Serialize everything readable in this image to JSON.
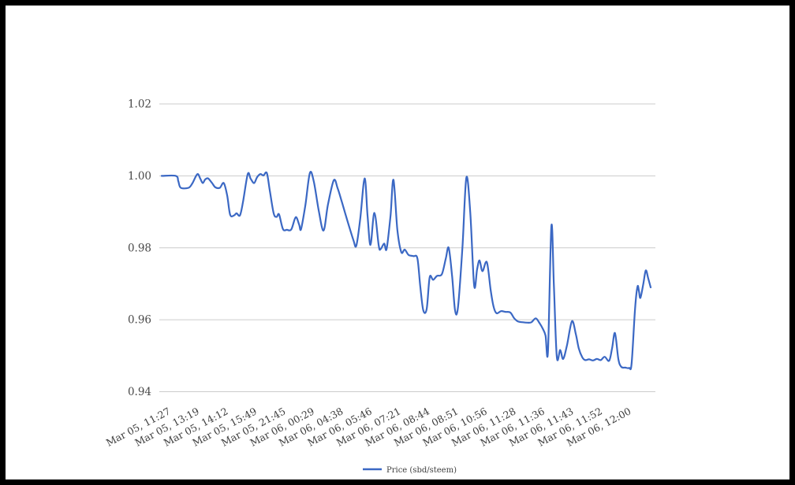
{
  "page": {
    "background_color": "#ffffff",
    "frame_color": "#000000"
  },
  "chart_data": {
    "type": "line",
    "title": "",
    "xlabel": "",
    "ylabel": "",
    "grid": "horizontal-only",
    "grid_color": "#cccccc",
    "ylim": [
      0.94,
      1.02
    ],
    "y_ticks": [
      "1.02",
      "1.00",
      "0.98",
      "0.96",
      "0.94"
    ],
    "y_tick_values": [
      1.02,
      1.0,
      0.98,
      0.96,
      0.94
    ],
    "x_tick_labels": [
      "Mar 05, 11:27",
      "Mar 05, 13:19",
      "Mar 05, 14:12",
      "Mar 05, 15:49",
      "Mar 05, 21:45",
      "Mar 06, 00:29",
      "Mar 06, 04:38",
      "Mar 06, 05:46",
      "Mar 06, 07:21",
      "Mar 06, 08:44",
      "Mar 06, 08:51",
      "Mar 06, 10:56",
      "Mar 06, 11:28",
      "Mar 06, 11:36",
      "Mar 06, 11:43",
      "Mar 06, 11:52",
      "Mar 06, 12:00"
    ],
    "legend": {
      "position": "bottom-center",
      "label": "Price (sbd/steem)"
    },
    "series": [
      {
        "name": "Price (sbd/steem)",
        "color": "#3b68c4",
        "points": [
          [
            0.0,
            1.0
          ],
          [
            0.029,
            1.0
          ],
          [
            0.034,
            0.9985
          ],
          [
            0.039,
            0.9967
          ],
          [
            0.055,
            0.9967
          ],
          [
            0.063,
            0.998
          ],
          [
            0.073,
            1.0005
          ],
          [
            0.079,
            0.9992
          ],
          [
            0.084,
            0.998
          ],
          [
            0.089,
            0.999
          ],
          [
            0.095,
            0.9993
          ],
          [
            0.103,
            0.998
          ],
          [
            0.11,
            0.9968
          ],
          [
            0.119,
            0.9967
          ],
          [
            0.127,
            0.998
          ],
          [
            0.134,
            0.9945
          ],
          [
            0.14,
            0.9892
          ],
          [
            0.148,
            0.989
          ],
          [
            0.153,
            0.9896
          ],
          [
            0.16,
            0.989
          ],
          [
            0.166,
            0.9925
          ],
          [
            0.176,
            1.0005
          ],
          [
            0.182,
            0.9992
          ],
          [
            0.189,
            0.998
          ],
          [
            0.195,
            0.9996
          ],
          [
            0.202,
            1.0005
          ],
          [
            0.208,
            1.0001
          ],
          [
            0.215,
            1.0008
          ],
          [
            0.221,
            0.996
          ],
          [
            0.229,
            0.9896
          ],
          [
            0.235,
            0.9886
          ],
          [
            0.24,
            0.9893
          ],
          [
            0.248,
            0.9852
          ],
          [
            0.256,
            0.985
          ],
          [
            0.265,
            0.9851
          ],
          [
            0.274,
            0.9885
          ],
          [
            0.281,
            0.9865
          ],
          [
            0.285,
            0.9852
          ],
          [
            0.294,
            0.992
          ],
          [
            0.303,
            1.0008
          ],
          [
            0.311,
            0.9985
          ],
          [
            0.321,
            0.9905
          ],
          [
            0.331,
            0.9848
          ],
          [
            0.34,
            0.992
          ],
          [
            0.352,
            0.9988
          ],
          [
            0.36,
            0.9965
          ],
          [
            0.369,
            0.9925
          ],
          [
            0.381,
            0.987
          ],
          [
            0.392,
            0.9822
          ],
          [
            0.398,
            0.9806
          ],
          [
            0.406,
            0.988
          ],
          [
            0.415,
            0.9993
          ],
          [
            0.421,
            0.989
          ],
          [
            0.427,
            0.9808
          ],
          [
            0.435,
            0.9897
          ],
          [
            0.444,
            0.9805
          ],
          [
            0.448,
            0.9797
          ],
          [
            0.455,
            0.9812
          ],
          [
            0.46,
            0.9797
          ],
          [
            0.468,
            0.989
          ],
          [
            0.474,
            0.9989
          ],
          [
            0.482,
            0.985
          ],
          [
            0.49,
            0.9788
          ],
          [
            0.497,
            0.9795
          ],
          [
            0.505,
            0.978
          ],
          [
            0.515,
            0.9777
          ],
          [
            0.523,
            0.977
          ],
          [
            0.529,
            0.969
          ],
          [
            0.535,
            0.9626
          ],
          [
            0.542,
            0.963
          ],
          [
            0.548,
            0.9718
          ],
          [
            0.555,
            0.9711
          ],
          [
            0.563,
            0.9722
          ],
          [
            0.573,
            0.9727
          ],
          [
            0.581,
            0.977
          ],
          [
            0.587,
            0.98
          ],
          [
            0.594,
            0.972
          ],
          [
            0.6,
            0.9626
          ],
          [
            0.606,
            0.9635
          ],
          [
            0.615,
            0.98
          ],
          [
            0.623,
            0.9995
          ],
          [
            0.631,
            0.99
          ],
          [
            0.639,
            0.9695
          ],
          [
            0.645,
            0.974
          ],
          [
            0.65,
            0.9765
          ],
          [
            0.656,
            0.9735
          ],
          [
            0.665,
            0.976
          ],
          [
            0.673,
            0.968
          ],
          [
            0.679,
            0.9635
          ],
          [
            0.685,
            0.9618
          ],
          [
            0.694,
            0.9624
          ],
          [
            0.703,
            0.9622
          ],
          [
            0.713,
            0.962
          ],
          [
            0.721,
            0.9604
          ],
          [
            0.729,
            0.9595
          ],
          [
            0.739,
            0.9593
          ],
          [
            0.748,
            0.9592
          ],
          [
            0.756,
            0.9593
          ],
          [
            0.765,
            0.9604
          ],
          [
            0.773,
            0.959
          ],
          [
            0.779,
            0.9576
          ],
          [
            0.785,
            0.9556
          ],
          [
            0.79,
            0.9513
          ],
          [
            0.797,
            0.986
          ],
          [
            0.802,
            0.97
          ],
          [
            0.808,
            0.9497
          ],
          [
            0.815,
            0.9516
          ],
          [
            0.821,
            0.9491
          ],
          [
            0.829,
            0.953
          ],
          [
            0.839,
            0.9596
          ],
          [
            0.847,
            0.956
          ],
          [
            0.853,
            0.952
          ],
          [
            0.86,
            0.9496
          ],
          [
            0.866,
            0.9488
          ],
          [
            0.874,
            0.949
          ],
          [
            0.882,
            0.9487
          ],
          [
            0.89,
            0.9491
          ],
          [
            0.898,
            0.9488
          ],
          [
            0.906,
            0.9497
          ],
          [
            0.915,
            0.9486
          ],
          [
            0.921,
            0.952
          ],
          [
            0.927,
            0.9563
          ],
          [
            0.934,
            0.949
          ],
          [
            0.94,
            0.9469
          ],
          [
            0.948,
            0.9467
          ],
          [
            0.956,
            0.9466
          ],
          [
            0.961,
            0.9478
          ],
          [
            0.968,
            0.963
          ],
          [
            0.973,
            0.9692
          ],
          [
            0.976,
            0.968
          ],
          [
            0.979,
            0.9661
          ],
          [
            0.985,
            0.97
          ],
          [
            0.99,
            0.9737
          ],
          [
            0.995,
            0.9715
          ],
          [
            1.0,
            0.969
          ]
        ]
      }
    ]
  }
}
